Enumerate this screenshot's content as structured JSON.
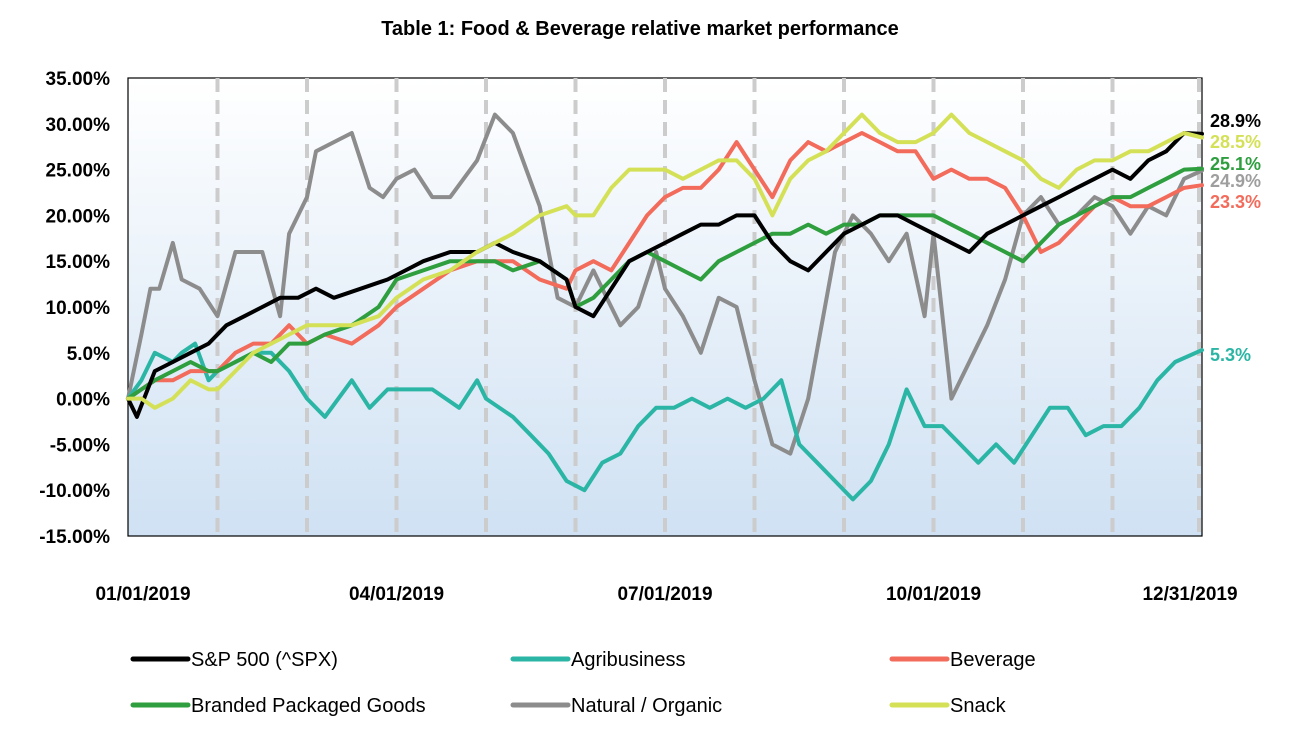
{
  "chart_data": {
    "type": "line",
    "title": "Table 1: Food & Beverage relative market performance",
    "xlabel": "",
    "ylabel": "",
    "ylim": [
      -0.15,
      0.35
    ],
    "y_ticks": [
      0.35,
      0.3,
      0.25,
      0.2,
      0.15,
      0.1,
      0.05,
      0.0,
      -0.05,
      -0.1,
      -0.15
    ],
    "y_tick_labels": [
      "35.00%",
      "30.00%",
      "25.00%",
      "20.00%",
      "15.00%",
      "10.00%",
      "5.0%",
      "0.00%",
      "-5.00%",
      "-10.00%",
      "-15.00%"
    ],
    "x_tick_labels": [
      "01/01/2019",
      "04/01/2019",
      "07/01/2019",
      "10/01/2019",
      "12/31/2019"
    ],
    "x_tick_positions": [
      0,
      3,
      6,
      9,
      12
    ],
    "xlim": [
      0,
      12
    ],
    "grid": "vertical dashed monthly",
    "legend_position": "bottom",
    "end_labels": [
      {
        "text": "28.9%",
        "value": 0.289,
        "color": "#000000"
      },
      {
        "text": "28.5%",
        "value": 0.285,
        "color": "#d4e157"
      },
      {
        "text": "25.1%",
        "value": 0.251,
        "color": "#2e9e3e"
      },
      {
        "text": "24.9%",
        "value": 0.249,
        "color": "#9e9e9e"
      },
      {
        "text": "23.3%",
        "value": 0.233,
        "color": "#f26b5b"
      },
      {
        "text": "5.3%",
        "value": 0.053,
        "color": "#2bb5a5"
      }
    ],
    "series": [
      {
        "name": "Natural / Organic",
        "color": "#8c8c8c",
        "x": [
          0,
          0.15,
          0.25,
          0.35,
          0.5,
          0.6,
          0.8,
          1.0,
          1.2,
          1.3,
          1.5,
          1.7,
          1.8,
          2.0,
          2.1,
          2.3,
          2.5,
          2.7,
          2.85,
          3.0,
          3.2,
          3.4,
          3.6,
          3.9,
          4.1,
          4.3,
          4.6,
          4.8,
          5.0,
          5.2,
          5.4,
          5.5,
          5.7,
          5.9,
          6.0,
          6.2,
          6.4,
          6.6,
          6.8,
          7.0,
          7.2,
          7.4,
          7.6,
          7.9,
          8.1,
          8.3,
          8.5,
          8.7,
          8.9,
          9.0,
          9.2,
          9.4,
          9.6,
          9.8,
          10.0,
          10.2,
          10.4,
          10.6,
          10.8,
          11.0,
          11.2,
          11.4,
          11.6,
          11.8,
          12.0
        ],
        "y": [
          0,
          0.07,
          0.12,
          0.12,
          0.17,
          0.13,
          0.12,
          0.09,
          0.16,
          0.16,
          0.16,
          0.09,
          0.18,
          0.22,
          0.27,
          0.28,
          0.29,
          0.23,
          0.22,
          0.24,
          0.25,
          0.22,
          0.22,
          0.26,
          0.31,
          0.29,
          0.21,
          0.11,
          0.1,
          0.14,
          0.1,
          0.08,
          0.1,
          0.16,
          0.12,
          0.09,
          0.05,
          0.11,
          0.1,
          0.02,
          -0.05,
          -0.06,
          0.0,
          0.16,
          0.2,
          0.18,
          0.15,
          0.18,
          0.09,
          0.18,
          0.0,
          0.04,
          0.08,
          0.13,
          0.2,
          0.22,
          0.19,
          0.2,
          0.22,
          0.21,
          0.18,
          0.21,
          0.2,
          0.24,
          0.249
        ]
      },
      {
        "name": "Agribusiness",
        "color": "#2bb5a5",
        "x": [
          0,
          0.15,
          0.3,
          0.5,
          0.6,
          0.75,
          0.9,
          1.0,
          1.2,
          1.4,
          1.6,
          1.8,
          2.0,
          2.2,
          2.5,
          2.7,
          2.9,
          3.1,
          3.4,
          3.7,
          3.9,
          4.0,
          4.3,
          4.5,
          4.7,
          4.9,
          5.1,
          5.3,
          5.5,
          5.7,
          5.9,
          6.1,
          6.3,
          6.5,
          6.7,
          6.9,
          7.1,
          7.3,
          7.5,
          7.7,
          7.9,
          8.1,
          8.3,
          8.5,
          8.7,
          8.9,
          9.1,
          9.3,
          9.5,
          9.7,
          9.9,
          10.1,
          10.3,
          10.5,
          10.7,
          10.9,
          11.1,
          11.3,
          11.5,
          11.7,
          12.0
        ],
        "y": [
          0,
          0.02,
          0.05,
          0.04,
          0.05,
          0.06,
          0.02,
          0.03,
          0.04,
          0.05,
          0.05,
          0.03,
          0.0,
          -0.02,
          0.02,
          -0.01,
          0.01,
          0.01,
          0.01,
          -0.01,
          0.02,
          0.0,
          -0.02,
          -0.04,
          -0.06,
          -0.09,
          -0.1,
          -0.07,
          -0.06,
          -0.03,
          -0.01,
          -0.01,
          0.0,
          -0.01,
          0.0,
          -0.01,
          0.0,
          0.02,
          -0.05,
          -0.07,
          -0.09,
          -0.11,
          -0.09,
          -0.05,
          0.01,
          -0.03,
          -0.03,
          -0.05,
          -0.07,
          -0.05,
          -0.07,
          -0.04,
          -0.01,
          -0.01,
          -0.04,
          -0.03,
          -0.03,
          -0.01,
          0.02,
          0.04,
          0.053
        ]
      },
      {
        "name": "Beverage",
        "color": "#f26b5b",
        "x": [
          0,
          0.15,
          0.3,
          0.5,
          0.7,
          0.9,
          1.0,
          1.2,
          1.4,
          1.6,
          1.8,
          2.0,
          2.2,
          2.5,
          2.8,
          3.0,
          3.3,
          3.6,
          3.9,
          4.1,
          4.3,
          4.6,
          4.9,
          5.0,
          5.2,
          5.4,
          5.6,
          5.8,
          6.0,
          6.2,
          6.4,
          6.6,
          6.8,
          7.0,
          7.2,
          7.4,
          7.6,
          7.8,
          8.0,
          8.2,
          8.4,
          8.6,
          8.8,
          9.0,
          9.2,
          9.4,
          9.6,
          9.8,
          10.0,
          10.2,
          10.4,
          10.6,
          10.8,
          11.0,
          11.2,
          11.4,
          11.6,
          11.8,
          12.0
        ],
        "y": [
          0,
          0.01,
          0.02,
          0.02,
          0.03,
          0.03,
          0.03,
          0.05,
          0.06,
          0.06,
          0.08,
          0.06,
          0.07,
          0.06,
          0.08,
          0.1,
          0.12,
          0.14,
          0.15,
          0.15,
          0.15,
          0.13,
          0.12,
          0.14,
          0.15,
          0.14,
          0.17,
          0.2,
          0.22,
          0.23,
          0.23,
          0.25,
          0.28,
          0.25,
          0.22,
          0.26,
          0.28,
          0.27,
          0.28,
          0.29,
          0.28,
          0.27,
          0.27,
          0.24,
          0.25,
          0.24,
          0.24,
          0.23,
          0.2,
          0.16,
          0.17,
          0.19,
          0.21,
          0.22,
          0.21,
          0.21,
          0.22,
          0.23,
          0.233
        ]
      },
      {
        "name": "Branded Packaged Goods",
        "color": "#2e9e3e",
        "x": [
          0,
          0.15,
          0.3,
          0.5,
          0.7,
          0.9,
          1.0,
          1.2,
          1.4,
          1.6,
          1.8,
          2.0,
          2.2,
          2.5,
          2.8,
          3.0,
          3.3,
          3.6,
          3.9,
          4.1,
          4.3,
          4.6,
          4.9,
          5.0,
          5.2,
          5.4,
          5.6,
          5.8,
          6.0,
          6.2,
          6.4,
          6.6,
          6.8,
          7.0,
          7.2,
          7.4,
          7.6,
          7.8,
          8.0,
          8.2,
          8.4,
          8.6,
          8.8,
          9.0,
          9.2,
          9.4,
          9.6,
          9.8,
          10.0,
          10.2,
          10.4,
          10.6,
          10.8,
          11.0,
          11.2,
          11.4,
          11.6,
          11.8,
          12.0
        ],
        "y": [
          0,
          0.01,
          0.02,
          0.03,
          0.04,
          0.03,
          0.03,
          0.04,
          0.05,
          0.04,
          0.06,
          0.06,
          0.07,
          0.08,
          0.1,
          0.13,
          0.14,
          0.15,
          0.15,
          0.15,
          0.14,
          0.15,
          0.13,
          0.1,
          0.11,
          0.13,
          0.15,
          0.16,
          0.15,
          0.14,
          0.13,
          0.15,
          0.16,
          0.17,
          0.18,
          0.18,
          0.19,
          0.18,
          0.19,
          0.19,
          0.2,
          0.2,
          0.2,
          0.2,
          0.19,
          0.18,
          0.17,
          0.16,
          0.15,
          0.17,
          0.19,
          0.2,
          0.21,
          0.22,
          0.22,
          0.23,
          0.24,
          0.25,
          0.251
        ]
      },
      {
        "name": "S&P 500 (^SPX)",
        "color": "#000000",
        "x": [
          0,
          0.1,
          0.3,
          0.5,
          0.7,
          0.9,
          1.1,
          1.3,
          1.5,
          1.7,
          1.9,
          2.1,
          2.3,
          2.6,
          2.9,
          3.1,
          3.3,
          3.6,
          3.9,
          4.1,
          4.3,
          4.6,
          4.9,
          5.0,
          5.2,
          5.4,
          5.6,
          5.8,
          6.0,
          6.2,
          6.4,
          6.6,
          6.8,
          7.0,
          7.2,
          7.4,
          7.6,
          7.8,
          8.0,
          8.2,
          8.4,
          8.6,
          8.8,
          9.0,
          9.2,
          9.4,
          9.6,
          9.8,
          10.0,
          10.2,
          10.4,
          10.6,
          10.8,
          11.0,
          11.2,
          11.4,
          11.6,
          11.8,
          12.0
        ],
        "y": [
          0,
          -0.02,
          0.03,
          0.04,
          0.05,
          0.06,
          0.08,
          0.09,
          0.1,
          0.11,
          0.11,
          0.12,
          0.11,
          0.12,
          0.13,
          0.14,
          0.15,
          0.16,
          0.16,
          0.17,
          0.16,
          0.15,
          0.13,
          0.1,
          0.09,
          0.12,
          0.15,
          0.16,
          0.17,
          0.18,
          0.19,
          0.19,
          0.2,
          0.2,
          0.17,
          0.15,
          0.14,
          0.16,
          0.18,
          0.19,
          0.2,
          0.2,
          0.19,
          0.18,
          0.17,
          0.16,
          0.18,
          0.19,
          0.2,
          0.21,
          0.22,
          0.23,
          0.24,
          0.25,
          0.24,
          0.26,
          0.27,
          0.29,
          0.289
        ]
      },
      {
        "name": "Snack",
        "color": "#d4e157",
        "x": [
          0,
          0.15,
          0.3,
          0.5,
          0.7,
          0.9,
          1.0,
          1.2,
          1.4,
          1.6,
          1.8,
          2.0,
          2.2,
          2.5,
          2.8,
          3.0,
          3.3,
          3.6,
          3.9,
          4.1,
          4.3,
          4.6,
          4.9,
          5.0,
          5.2,
          5.4,
          5.6,
          5.8,
          6.0,
          6.2,
          6.4,
          6.6,
          6.8,
          7.0,
          7.2,
          7.4,
          7.6,
          7.8,
          8.0,
          8.2,
          8.4,
          8.6,
          8.8,
          9.0,
          9.2,
          9.4,
          9.6,
          9.8,
          10.0,
          10.2,
          10.4,
          10.6,
          10.8,
          11.0,
          11.2,
          11.4,
          11.6,
          11.8,
          12.0
        ],
        "y": [
          0,
          0.0,
          -0.01,
          0.0,
          0.02,
          0.01,
          0.01,
          0.03,
          0.05,
          0.06,
          0.07,
          0.08,
          0.08,
          0.08,
          0.09,
          0.11,
          0.13,
          0.14,
          0.16,
          0.17,
          0.18,
          0.2,
          0.21,
          0.2,
          0.2,
          0.23,
          0.25,
          0.25,
          0.25,
          0.24,
          0.25,
          0.26,
          0.26,
          0.24,
          0.2,
          0.24,
          0.26,
          0.27,
          0.29,
          0.31,
          0.29,
          0.28,
          0.28,
          0.29,
          0.31,
          0.29,
          0.28,
          0.27,
          0.26,
          0.24,
          0.23,
          0.25,
          0.26,
          0.26,
          0.27,
          0.27,
          0.28,
          0.29,
          0.285
        ]
      }
    ],
    "legend": [
      {
        "label": "S&P 500 (^SPX)",
        "color": "#000000"
      },
      {
        "label": "Agribusiness",
        "color": "#2bb5a5"
      },
      {
        "label": "Beverage",
        "color": "#f26b5b"
      },
      {
        "label": "Branded Packaged Goods",
        "color": "#2e9e3e"
      },
      {
        "label": "Natural / Organic",
        "color": "#8c8c8c"
      },
      {
        "label": "Snack",
        "color": "#d4e157"
      }
    ]
  }
}
